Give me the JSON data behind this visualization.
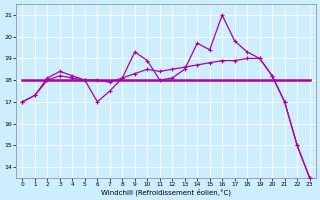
{
  "background_color": "#cceeff",
  "line_color": "#aa00aa",
  "xlim": [
    -0.5,
    23.5
  ],
  "ylim": [
    13.5,
    21.5
  ],
  "yticks": [
    14,
    15,
    16,
    17,
    18,
    19,
    20,
    21
  ],
  "xticks": [
    0,
    1,
    2,
    3,
    4,
    5,
    6,
    7,
    8,
    9,
    10,
    11,
    12,
    13,
    14,
    15,
    16,
    17,
    18,
    19,
    20,
    21,
    22,
    23
  ],
  "xlabel": "Windchill (Refroidissement éolien,°C)",
  "series1_x": [
    0,
    1,
    2,
    3,
    4,
    5,
    6,
    7,
    8,
    9,
    10,
    11,
    12,
    13,
    14,
    15,
    16,
    17,
    18,
    19,
    20,
    21,
    22,
    23
  ],
  "series1_y": [
    17.0,
    17.3,
    18.1,
    18.4,
    18.2,
    18.0,
    17.0,
    17.5,
    18.1,
    19.3,
    18.9,
    18.0,
    18.1,
    18.5,
    19.7,
    19.4,
    21.0,
    19.8,
    19.3,
    19.0,
    18.2,
    17.0,
    15.0,
    13.5
  ],
  "series2_x": [
    0,
    1,
    2,
    3,
    4,
    5,
    6,
    7,
    8,
    9,
    10,
    11,
    12,
    13,
    14,
    15,
    16,
    17,
    18,
    19,
    20,
    21,
    22,
    23
  ],
  "series2_y": [
    17.0,
    17.3,
    18.0,
    18.2,
    18.1,
    18.0,
    18.0,
    17.9,
    18.1,
    18.3,
    18.5,
    18.4,
    18.5,
    18.6,
    18.7,
    18.8,
    18.9,
    18.9,
    19.0,
    19.0,
    18.2,
    17.0,
    15.0,
    13.5
  ],
  "series3_x": [
    0,
    23
  ],
  "series3_y": [
    18.0,
    18.0
  ],
  "lw1": 0.9,
  "lw2": 0.9,
  "lw3": 1.8,
  "marker_size": 3.0
}
